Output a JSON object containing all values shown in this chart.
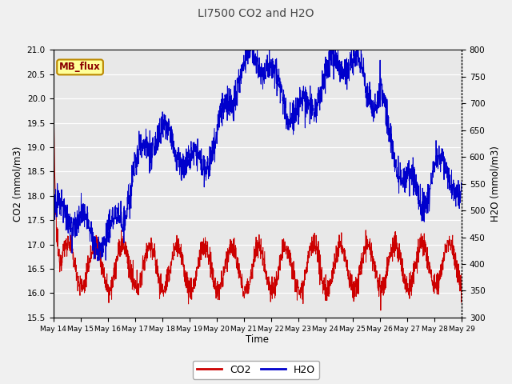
{
  "title": "LI7500 CO2 and H2O",
  "xlabel": "Time",
  "ylabel_left": "CO2 (mmol/m3)",
  "ylabel_right": "H2O (mmol/m3)",
  "co2_ylim": [
    15.5,
    21.0
  ],
  "h2o_ylim": [
    300,
    800
  ],
  "co2_yticks": [
    15.5,
    16.0,
    16.5,
    17.0,
    17.5,
    18.0,
    18.5,
    19.0,
    19.5,
    20.0,
    20.5,
    21.0
  ],
  "h2o_yticks": [
    300,
    350,
    400,
    450,
    500,
    550,
    600,
    650,
    700,
    750,
    800
  ],
  "xtick_labels": [
    "May 14",
    "May 15",
    "May 16",
    "May 17",
    "May 18",
    "May 19",
    "May 20",
    "May 21",
    "May 22",
    "May 23",
    "May 24",
    "May 25",
    "May 26",
    "May 27",
    "May 28",
    "May 29"
  ],
  "co2_color": "#CC0000",
  "h2o_color": "#0000CC",
  "annotation_text": "MB_flux",
  "annotation_bg": "#FFFF99",
  "annotation_border": "#BB8800",
  "plot_bg_color": "#E8E8E8",
  "fig_bg_color": "#F0F0F0",
  "grid_color": "#FFFFFF",
  "title_color": "#444444"
}
